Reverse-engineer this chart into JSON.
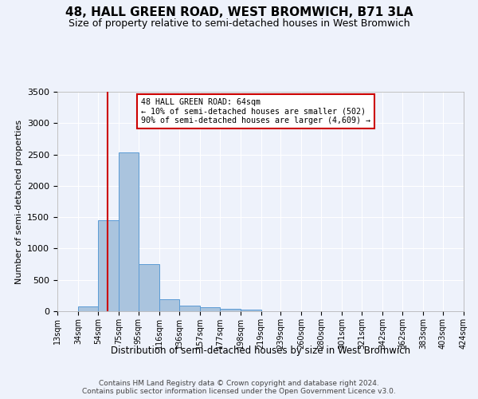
{
  "title": "48, HALL GREEN ROAD, WEST BROMWICH, B71 3LA",
  "subtitle": "Size of property relative to semi-detached houses in West Bromwich",
  "xlabel": "Distribution of semi-detached houses by size in West Bromwich",
  "ylabel": "Number of semi-detached properties",
  "footer_line1": "Contains HM Land Registry data © Crown copyright and database right 2024.",
  "footer_line2": "Contains public sector information licensed under the Open Government Licence v3.0.",
  "bin_edges": [
    13,
    34,
    54,
    75,
    95,
    116,
    136,
    157,
    177,
    198,
    219,
    239,
    260,
    280,
    301,
    321,
    342,
    362,
    383,
    403,
    424
  ],
  "bin_counts": [
    0,
    80,
    1450,
    2530,
    750,
    190,
    90,
    60,
    40,
    30,
    0,
    0,
    0,
    0,
    0,
    0,
    0,
    0,
    0,
    0
  ],
  "bar_color": "#aac4de",
  "bar_edgecolor": "#5b9bd5",
  "property_size": 64,
  "red_line_color": "#cc0000",
  "annotation_text_line1": "48 HALL GREEN ROAD: 64sqm",
  "annotation_text_line2": "← 10% of semi-detached houses are smaller (502)",
  "annotation_text_line3": "90% of semi-detached houses are larger (4,609) →",
  "annotation_box_edgecolor": "#cc0000",
  "ylim": [
    0,
    3500
  ],
  "yticks": [
    0,
    500,
    1000,
    1500,
    2000,
    2500,
    3000,
    3500
  ],
  "background_color": "#eef2fb",
  "grid_color": "#ffffff",
  "title_fontsize": 11,
  "subtitle_fontsize": 9,
  "footer_fontsize": 6.5
}
